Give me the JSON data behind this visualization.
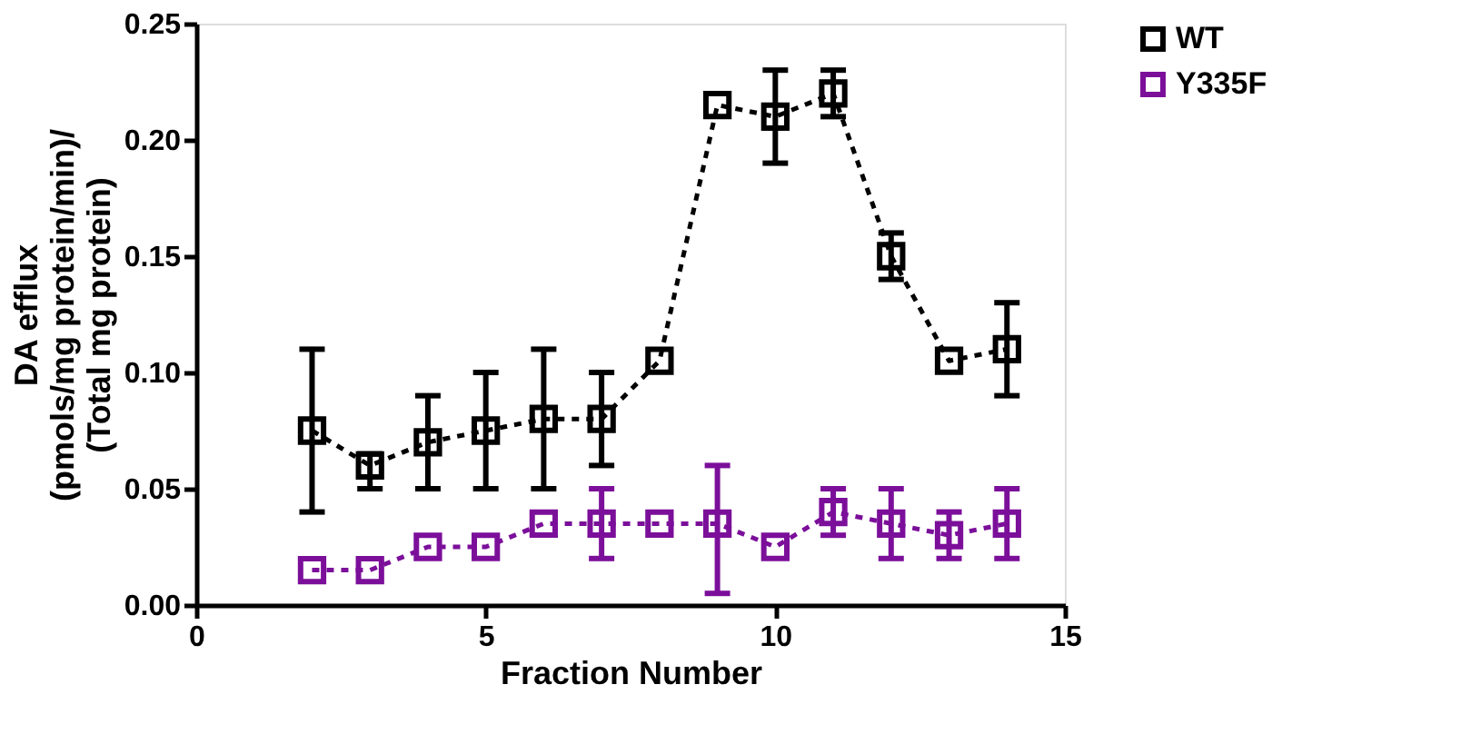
{
  "chart_data": {
    "type": "line",
    "xlabel": "Fraction Number",
    "ylabel": "DA efflux\n(pmols/mg protein/min)/\n(Total mg protein)",
    "x": [
      2,
      3,
      4,
      5,
      6,
      7,
      8,
      9,
      10,
      11,
      12,
      13,
      14
    ],
    "series": [
      {
        "name": "WT",
        "color": "#000000",
        "values": [
          0.075,
          0.06,
          0.07,
          0.075,
          0.08,
          0.08,
          0.105,
          0.215,
          0.21,
          0.22,
          0.15,
          0.105,
          0.11
        ],
        "errors": [
          [
            0.04,
            0.11
          ],
          [
            0.05,
            0.065
          ],
          [
            0.05,
            0.09
          ],
          [
            0.05,
            0.1
          ],
          [
            0.05,
            0.11
          ],
          [
            0.06,
            0.1
          ],
          null,
          null,
          [
            0.19,
            0.23
          ],
          [
            0.21,
            0.23
          ],
          [
            0.14,
            0.16
          ],
          null,
          [
            0.09,
            0.13
          ]
        ]
      },
      {
        "name": "Y335F",
        "color": "#7b0f9a",
        "values": [
          0.015,
          0.015,
          0.025,
          0.025,
          0.035,
          0.035,
          0.035,
          0.035,
          0.025,
          0.04,
          0.035,
          0.03,
          0.035
        ],
        "errors": [
          null,
          null,
          null,
          null,
          null,
          [
            0.02,
            0.05
          ],
          null,
          [
            0.005,
            0.06
          ],
          null,
          [
            0.03,
            0.05
          ],
          [
            0.02,
            0.05
          ],
          [
            0.02,
            0.04
          ],
          [
            0.02,
            0.05
          ]
        ]
      }
    ],
    "xlim": [
      0,
      15
    ],
    "xticks": [
      0,
      5,
      10,
      15
    ],
    "ylim": [
      0,
      0.25
    ],
    "yticks": [
      {
        "value": 0,
        "label": "0.00"
      },
      0.05,
      {
        "value": 0.1,
        "label": "0.10"
      },
      0.15,
      {
        "value": 0.2,
        "label": "0.20"
      },
      0.25
    ],
    "marker": "square",
    "line_style": "dashed",
    "grid": false,
    "legend": "top right"
  }
}
